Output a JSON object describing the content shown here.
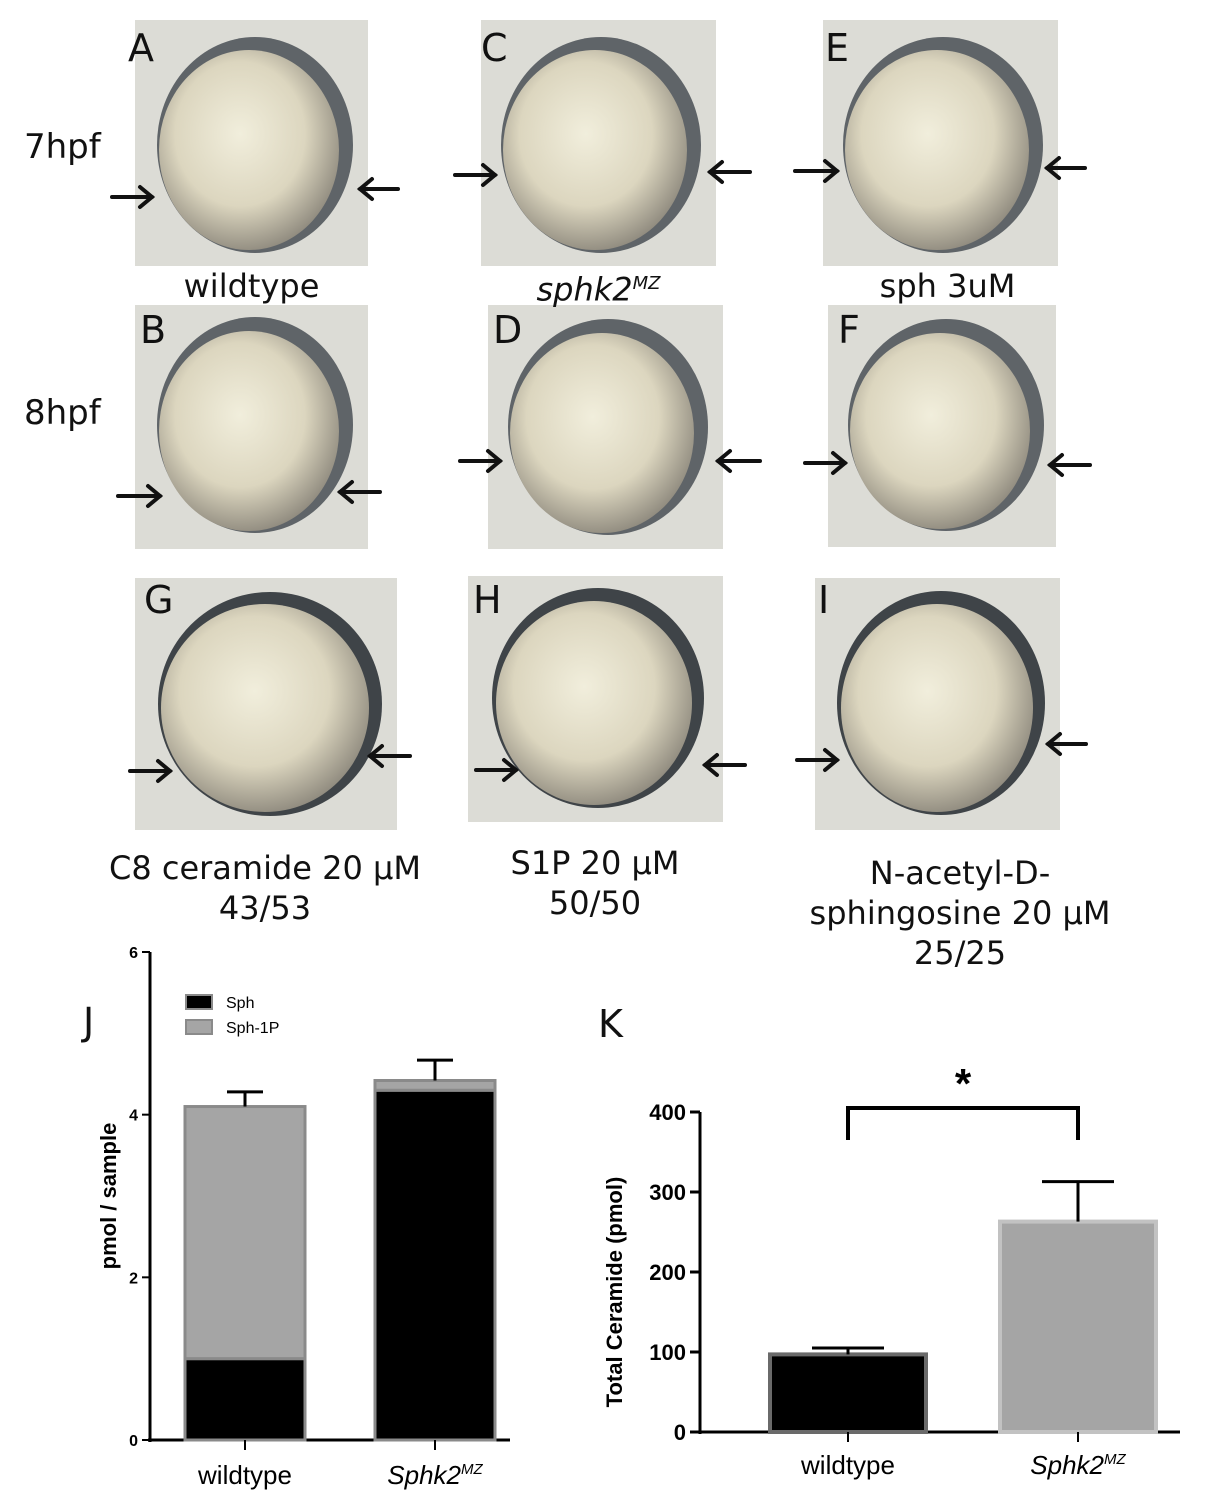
{
  "figure": {
    "row_labels": [
      "7hpf",
      "8hpf"
    ],
    "panel_letters": [
      "A",
      "B",
      "C",
      "D",
      "E",
      "F",
      "G",
      "H",
      "I",
      "J",
      "K"
    ],
    "captions": {
      "wildtype": "wildtype",
      "sphk2_base": "sphk2",
      "sphk2_sup": "MZ",
      "sph": "sph 3uM",
      "c8_line1": "C8 ceramide 20 µM",
      "c8_line2": "43/53",
      "s1p_line1": "S1P 20 µM",
      "s1p_line2": "50/50",
      "nac_line1": "N-acetyl-D-",
      "nac_line2": "sphingosine 20 µM",
      "nac_line3": "25/25"
    },
    "colors": {
      "black": "#000000",
      "gray": "#a5a5a5",
      "panel_bg": "#dcdcd6"
    }
  },
  "chart_data": [
    {
      "type": "bar",
      "stacked": true,
      "panel": "J",
      "categories": [
        "wildtype",
        "Sphk2"
      ],
      "category_sup": [
        "",
        "MZ"
      ],
      "series": [
        {
          "name": "Sph",
          "values": [
            1.0,
            4.3
          ],
          "errors": [
            0.15,
            0.12
          ],
          "color": "#000000"
        },
        {
          "name": "Sph-1P",
          "values": [
            3.1,
            0.12
          ],
          "errors": [
            0.18,
            0.25
          ],
          "color": "#a5a5a5"
        }
      ],
      "ylabel": "pmol / sample",
      "ylim": [
        0,
        6
      ],
      "yticks": [
        "0",
        "2",
        "4",
        "6"
      ],
      "legend": "top-left"
    },
    {
      "type": "bar",
      "panel": "K",
      "categories": [
        "wildtype",
        "Sphk2"
      ],
      "category_sup": [
        "",
        "MZ"
      ],
      "values": [
        97,
        263
      ],
      "errors": [
        8,
        50
      ],
      "colors": [
        "#000000",
        "#a5a5a5"
      ],
      "ylabel": "Total Ceramide (pmol)",
      "ylim": [
        0,
        400
      ],
      "yticks": [
        "0",
        "100",
        "200",
        "300",
        "400"
      ],
      "significance": "*"
    }
  ]
}
